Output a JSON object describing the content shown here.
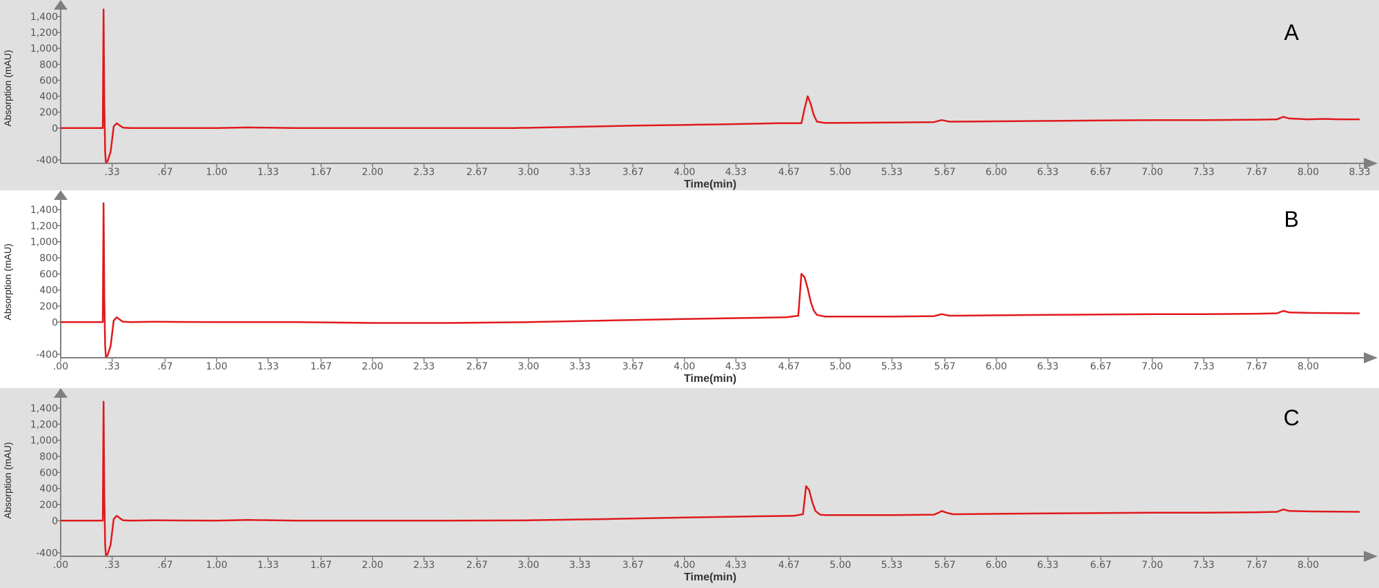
{
  "colors": {
    "trace": "#e0191b",
    "axis": "#7f7f7f",
    "panel_gray": "#e0e0e0",
    "panel_white": "#ffffff"
  },
  "chart_data": [
    {
      "type": "line",
      "panel_label": "A",
      "background": "gray",
      "xlabel": "Time(min)",
      "ylabel": "Absorption (mAU)",
      "xlim": [
        0,
        8.33
      ],
      "ylim": [
        -400,
        1400
      ],
      "x_tick_labels": [
        ".33",
        ".67",
        "1.00",
        "1.33",
        "1.67",
        "2.00",
        "2.33",
        "2.67",
        "3.00",
        "3.33",
        "3.67",
        "4.00",
        "4.33",
        "4.67",
        "5.00",
        "5.33",
        "5.67",
        "6.00",
        "6.33",
        "6.67",
        "7.00",
        "7.33",
        "7.67",
        "8.00",
        "8.33"
      ],
      "y_tick_labels": [
        "-400",
        "0",
        "200",
        "400",
        "600",
        "800",
        "1,000",
        "1,200",
        "1,400"
      ],
      "series": [
        {
          "x": [
            0.0,
            0.27,
            0.275,
            0.28,
            0.285,
            0.29,
            0.3,
            0.32,
            0.34,
            0.36,
            0.38,
            0.4,
            0.45,
            0.6,
            1.0,
            1.2,
            1.5,
            2.0,
            2.5,
            2.9,
            3.3,
            3.67,
            4.0,
            4.33,
            4.6,
            4.75,
            4.77,
            4.79,
            4.81,
            4.83,
            4.85,
            4.9,
            5.0,
            5.33,
            5.6,
            5.65,
            5.7,
            6.0,
            6.33,
            6.67,
            7.0,
            7.33,
            7.67,
            7.8,
            7.84,
            7.88,
            8.0,
            8.1,
            8.2,
            8.33
          ],
          "y": [
            0,
            0,
            1490,
            300,
            -300,
            -430,
            -420,
            -300,
            20,
            60,
            30,
            5,
            0,
            0,
            0,
            8,
            0,
            0,
            0,
            0,
            15,
            30,
            40,
            50,
            60,
            60,
            240,
            400,
            300,
            160,
            80,
            65,
            65,
            70,
            75,
            100,
            80,
            85,
            90,
            95,
            100,
            100,
            105,
            110,
            140,
            120,
            110,
            115,
            110,
            110
          ]
        }
      ]
    },
    {
      "type": "line",
      "panel_label": "B",
      "background": "white",
      "xlabel": "Time(min)",
      "ylabel": "Absorption (mAU)",
      "xlim": [
        0,
        8.33
      ],
      "ylim": [
        -400,
        1400
      ],
      "x_tick_labels": [
        ".00",
        ".33",
        ".67",
        "1.00",
        "1.33",
        "1.67",
        "2.00",
        "2.33",
        "2.67",
        "3.00",
        "3.33",
        "3.67",
        "4.00",
        "4.33",
        "4.67",
        "5.00",
        "5.33",
        "5.67",
        "6.00",
        "6.33",
        "6.67",
        "7.00",
        "7.33",
        "7.67",
        "8.00"
      ],
      "y_tick_labels": [
        "-400",
        "0",
        "200",
        "400",
        "600",
        "800",
        "1,000",
        "1,200",
        "1,400"
      ],
      "series": [
        {
          "x": [
            0.0,
            0.27,
            0.275,
            0.28,
            0.285,
            0.29,
            0.3,
            0.32,
            0.34,
            0.36,
            0.38,
            0.4,
            0.45,
            0.6,
            1.0,
            1.5,
            2.0,
            2.5,
            3.0,
            3.5,
            4.0,
            4.5,
            4.65,
            4.73,
            4.75,
            4.77,
            4.79,
            4.81,
            4.83,
            4.85,
            4.9,
            5.0,
            5.33,
            5.6,
            5.65,
            5.7,
            6.0,
            6.33,
            6.67,
            7.0,
            7.33,
            7.67,
            7.8,
            7.84,
            7.88,
            8.0,
            8.33
          ],
          "y": [
            0,
            0,
            1480,
            300,
            -300,
            -430,
            -420,
            -300,
            20,
            60,
            30,
            5,
            0,
            5,
            0,
            0,
            -10,
            -10,
            0,
            20,
            40,
            55,
            60,
            80,
            600,
            560,
            420,
            250,
            140,
            90,
            70,
            70,
            70,
            75,
            100,
            80,
            85,
            90,
            95,
            100,
            100,
            105,
            110,
            140,
            120,
            115,
            110
          ]
        }
      ]
    },
    {
      "type": "line",
      "panel_label": "C",
      "background": "gray",
      "xlabel": "Time(min)",
      "ylabel": "Absorption (mAU)",
      "xlim": [
        0,
        8.33
      ],
      "ylim": [
        -400,
        1400
      ],
      "x_tick_labels": [
        ".00",
        ".33",
        ".67",
        "1.00",
        "1.33",
        "1.67",
        "2.00",
        "2.33",
        "2.67",
        "3.00",
        "3.33",
        "3.67",
        "4.00",
        "4.33",
        "4.67",
        "5.00",
        "5.33",
        "5.67",
        "6.00",
        "6.33",
        "6.67",
        "7.00",
        "7.33",
        "7.67",
        "8.00"
      ],
      "y_tick_labels": [
        "-400",
        "0",
        "200",
        "400",
        "600",
        "800",
        "1,000",
        "1,200",
        "1,400"
      ],
      "series": [
        {
          "x": [
            0.0,
            0.27,
            0.275,
            0.28,
            0.285,
            0.29,
            0.3,
            0.32,
            0.34,
            0.36,
            0.38,
            0.4,
            0.45,
            0.6,
            1.0,
            1.2,
            1.5,
            2.0,
            2.5,
            3.0,
            3.5,
            4.0,
            4.5,
            4.7,
            4.76,
            4.78,
            4.8,
            4.82,
            4.84,
            4.87,
            4.9,
            5.0,
            5.33,
            5.6,
            5.63,
            5.65,
            5.68,
            5.72,
            6.0,
            6.33,
            6.67,
            7.0,
            7.33,
            7.67,
            7.8,
            7.84,
            7.88,
            8.0,
            8.33
          ],
          "y": [
            0,
            0,
            1480,
            300,
            -300,
            -430,
            -420,
            -300,
            20,
            60,
            30,
            5,
            0,
            5,
            0,
            10,
            0,
            0,
            0,
            5,
            20,
            40,
            55,
            60,
            80,
            430,
            380,
            230,
            120,
            75,
            70,
            70,
            70,
            75,
            100,
            120,
            100,
            80,
            85,
            90,
            95,
            100,
            100,
            105,
            110,
            140,
            120,
            115,
            110
          ]
        }
      ]
    }
  ]
}
